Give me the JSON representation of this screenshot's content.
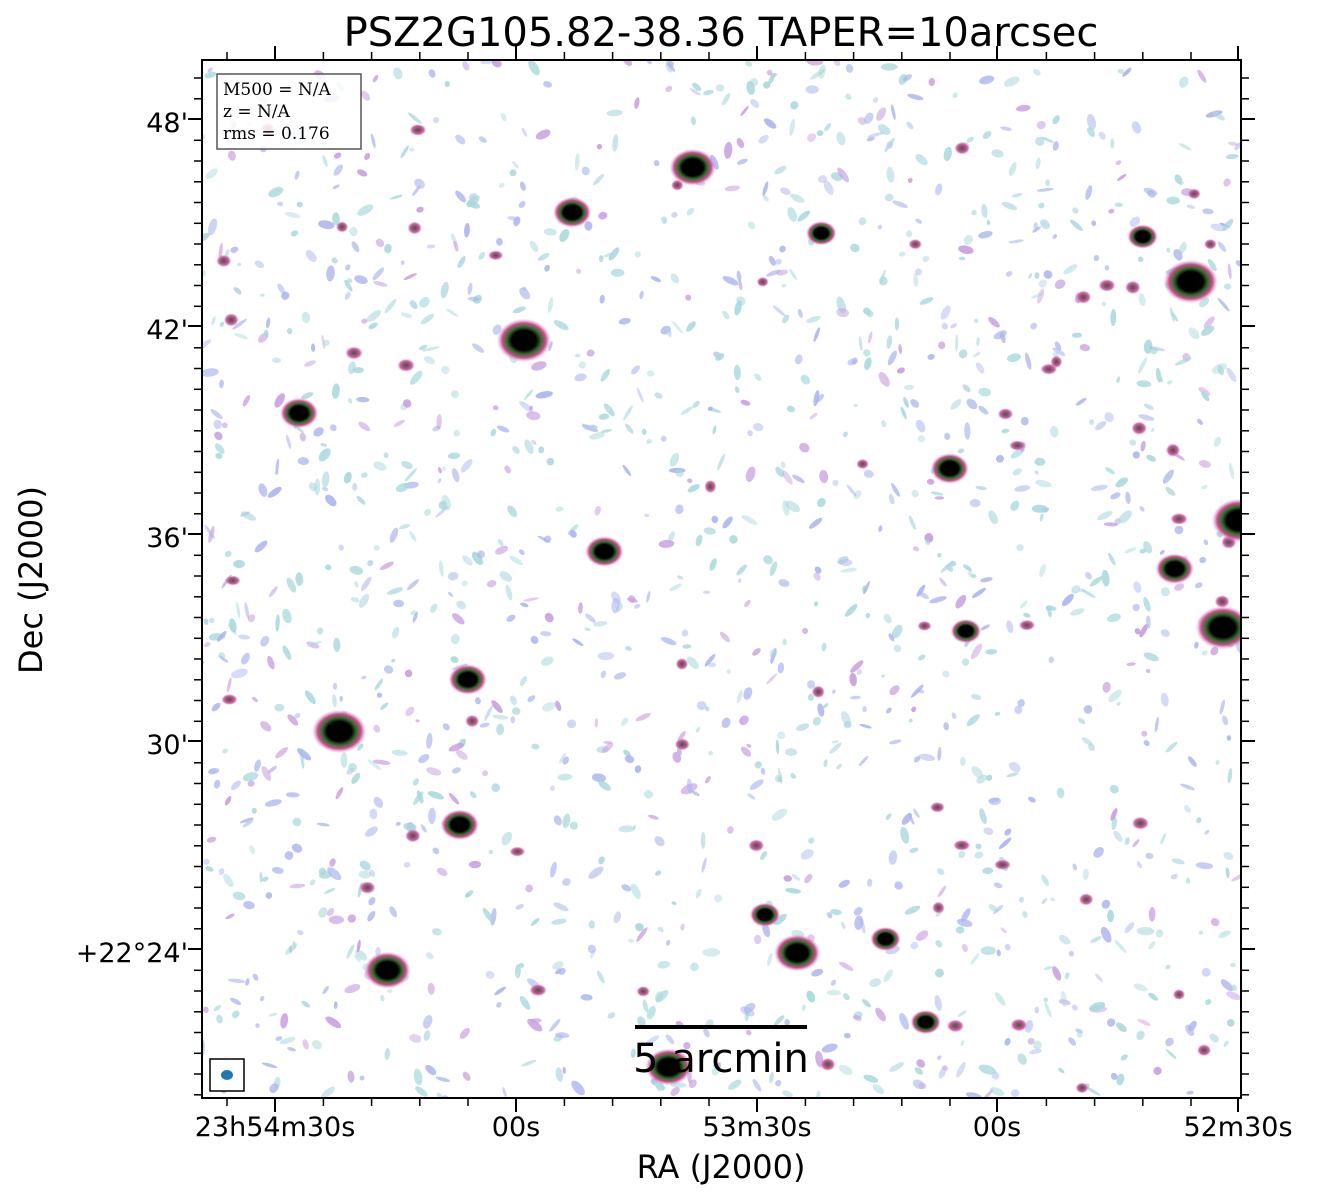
{
  "chart_data": {
    "type": "heatmap",
    "title": "PSZ2G105.82-38.36 TAPER=10arcsec",
    "xlabel": "RA (J2000)",
    "ylabel": "Dec (J2000)",
    "x_ticks": [
      "23h54m30s",
      "00s",
      "53m30s",
      "00s",
      "52m30s"
    ],
    "y_ticks": [
      "48'",
      "42'",
      "36'",
      "30'",
      "+22°24'"
    ],
    "info_box": [
      "M500 = N/A",
      "z = N/A",
      "rms = 0.176"
    ],
    "scalebar_label": "5 arcmin",
    "beam_color": "#1f77b4",
    "colors": {
      "noise_light": "#a8d8dc",
      "noise_blue": "#aab4ee",
      "noise_purple": "#c79be0",
      "source_rim": "#cc4f8e",
      "source_mid": "#2f6b2a",
      "source_core": "#000000"
    },
    "sources": [
      {
        "ra": "23h53m38s",
        "dec": "+22°46.6'",
        "flux": 3
      },
      {
        "ra": "23h53m53s",
        "dec": "+22°45.3'",
        "flux": 2
      },
      {
        "ra": "23h53m22s",
        "dec": "+22°44.7'",
        "flux": 1
      },
      {
        "ra": "23h53m59s",
        "dec": "+22°41.6'",
        "flux": 4
      },
      {
        "ra": "23h54m27s",
        "dec": "+22°39.5'",
        "flux": 2
      },
      {
        "ra": "23h52m36s",
        "dec": "+22°43.3'",
        "flux": 4
      },
      {
        "ra": "23h52m42s",
        "dec": "+22°44.6'",
        "flux": 1
      },
      {
        "ra": "23h53m06s",
        "dec": "+22°37.9'",
        "flux": 2
      },
      {
        "ra": "23h52m30s",
        "dec": "+22°36.4'",
        "flux": 4
      },
      {
        "ra": "23h52m38s",
        "dec": "+22°35.0'",
        "flux": 2
      },
      {
        "ra": "23h52m32s",
        "dec": "+22°33.3'",
        "flux": 4
      },
      {
        "ra": "23h53m49s",
        "dec": "+22°35.5'",
        "flux": 2
      },
      {
        "ra": "23h54m06s",
        "dec": "+22°31.8'",
        "flux": 2
      },
      {
        "ra": "23h54m22s",
        "dec": "+22°30.3'",
        "flux": 4
      },
      {
        "ra": "23h54m07s",
        "dec": "+22°27.6'",
        "flux": 2
      },
      {
        "ra": "23h53m25s",
        "dec": "+22°23.9'",
        "flux": 3
      },
      {
        "ra": "23h54m16s",
        "dec": "+22°23.4'",
        "flux": 3
      },
      {
        "ra": "23h53m41s",
        "dec": "+22°20.6'",
        "flux": 3
      },
      {
        "ra": "23h53m14s",
        "dec": "+22°24.3'",
        "flux": 1
      },
      {
        "ra": "23h53m29s",
        "dec": "+22°25.0'",
        "flux": 1
      },
      {
        "ra": "23h53m09s",
        "dec": "+22°21.9'",
        "flux": 1
      },
      {
        "ra": "23h53m04s",
        "dec": "+22°33.2'",
        "flux": 1
      }
    ]
  }
}
